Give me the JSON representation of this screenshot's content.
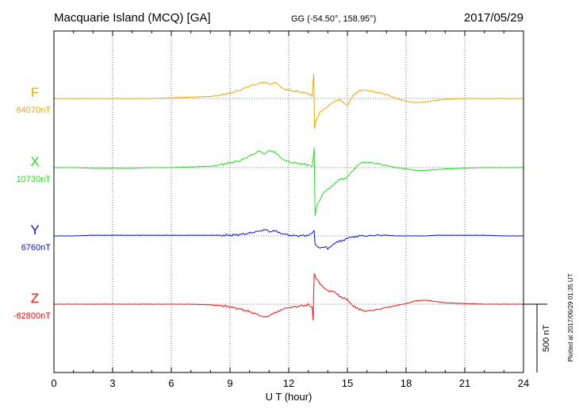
{
  "header": {
    "station": "Macquarie Island (MCQ)  [GA]",
    "coords": "GG (-54.50°, 158.95°)",
    "date": "2017/05/29"
  },
  "footer": {
    "plotted": "Plotted at 2017/06/29 01:35 UT",
    "scale_label": "500 nT"
  },
  "chart_data": {
    "type": "line",
    "xlabel": "U T (hour)",
    "xlim": [
      0,
      24
    ],
    "x_ticks": [
      "0",
      "3",
      "6",
      "9",
      "12",
      "15",
      "18",
      "21",
      "24"
    ],
    "scale_bar_nT": 500,
    "grid": "dotted",
    "series": [
      {
        "name": "F",
        "baseline_label": "64070nT",
        "color": "#f0a800",
        "x": [
          0,
          1,
          2,
          3,
          4,
          5,
          6,
          7,
          8,
          8.5,
          9,
          9.5,
          10,
          10.5,
          10.8,
          11,
          11.3,
          11.6,
          12,
          12.5,
          13,
          13.2,
          13.28,
          13.32,
          13.4,
          13.6,
          13.8,
          14,
          14.3,
          14.6,
          15,
          15.3,
          15.6,
          16,
          16.5,
          17,
          17.5,
          18,
          18.5,
          19,
          19.5,
          20,
          21,
          22,
          23,
          24
        ],
        "values": [
          0,
          0,
          0,
          0,
          0,
          0,
          5,
          10,
          15,
          25,
          40,
          60,
          90,
          110,
          120,
          105,
          120,
          80,
          60,
          50,
          35,
          20,
          180,
          -220,
          -160,
          -100,
          -80,
          -60,
          -20,
          -10,
          -50,
          20,
          60,
          60,
          45,
          30,
          0,
          -20,
          -30,
          -25,
          -15,
          -5,
          0,
          0,
          0,
          0
        ]
      },
      {
        "name": "X",
        "baseline_label": "10730nT",
        "color": "#22dd22",
        "x": [
          0,
          1,
          2,
          3,
          4,
          5,
          6,
          7,
          8,
          8.5,
          9,
          9.5,
          10,
          10.5,
          10.8,
          11,
          11.3,
          11.6,
          12,
          12.5,
          13,
          13.2,
          13.3,
          13.35,
          13.4,
          13.6,
          13.8,
          14,
          14.3,
          14.6,
          15,
          15.3,
          15.6,
          16,
          16.5,
          17,
          17.5,
          18,
          18.5,
          19,
          19.5,
          20,
          21,
          22,
          23,
          24
        ],
        "values": [
          0,
          0,
          -5,
          -5,
          -5,
          0,
          0,
          5,
          10,
          20,
          35,
          50,
          85,
          120,
          100,
          130,
          110,
          70,
          40,
          30,
          20,
          10,
          140,
          -360,
          -300,
          -230,
          -180,
          -160,
          -120,
          -90,
          -70,
          -20,
          30,
          40,
          30,
          15,
          0,
          -10,
          -20,
          -20,
          -15,
          -10,
          -5,
          0,
          0,
          0
        ]
      },
      {
        "name": "Y",
        "baseline_label": "6760nT",
        "color": "#1010cc",
        "x": [
          0,
          1,
          2,
          3,
          4,
          5,
          6,
          7,
          8,
          8.5,
          9,
          9.5,
          10,
          10.5,
          10.8,
          11,
          11.3,
          11.6,
          12,
          12.5,
          13,
          13.2,
          13.3,
          13.35,
          13.4,
          13.6,
          13.8,
          14,
          14.3,
          14.6,
          15,
          15.3,
          15.6,
          16,
          16.5,
          17,
          17.5,
          18,
          18.5,
          19,
          19.5,
          20,
          21,
          22,
          23,
          24
        ],
        "values": [
          0,
          0,
          5,
          5,
          5,
          5,
          5,
          5,
          5,
          5,
          5,
          10,
          20,
          35,
          50,
          30,
          35,
          20,
          5,
          0,
          5,
          20,
          40,
          -60,
          -70,
          -90,
          -80,
          -90,
          -60,
          -40,
          -20,
          -5,
          0,
          0,
          5,
          5,
          0,
          0,
          0,
          0,
          5,
          5,
          5,
          5,
          0,
          0
        ]
      },
      {
        "name": "Z",
        "baseline_label": "-62800nT",
        "color": "#ee1010",
        "x": [
          0,
          1,
          2,
          3,
          4,
          5,
          6,
          7,
          8,
          8.5,
          9,
          9.5,
          10,
          10.5,
          10.8,
          11,
          11.3,
          11.6,
          12,
          12.5,
          13,
          13.2,
          13.25,
          13.3,
          13.4,
          13.6,
          13.8,
          14,
          14.3,
          14.6,
          15,
          15.3,
          15.6,
          16,
          16.5,
          17,
          17.5,
          18,
          18.5,
          19,
          19.5,
          20,
          21,
          22,
          23,
          24
        ],
        "values": [
          0,
          0,
          0,
          0,
          0,
          0,
          0,
          0,
          -5,
          -10,
          -20,
          -35,
          -55,
          -80,
          -95,
          -85,
          -65,
          -40,
          -25,
          -15,
          -5,
          -20,
          -110,
          220,
          190,
          150,
          120,
          100,
          90,
          60,
          30,
          -10,
          -40,
          -50,
          -40,
          -25,
          -10,
          5,
          25,
          30,
          20,
          10,
          5,
          0,
          0,
          0
        ]
      }
    ]
  }
}
